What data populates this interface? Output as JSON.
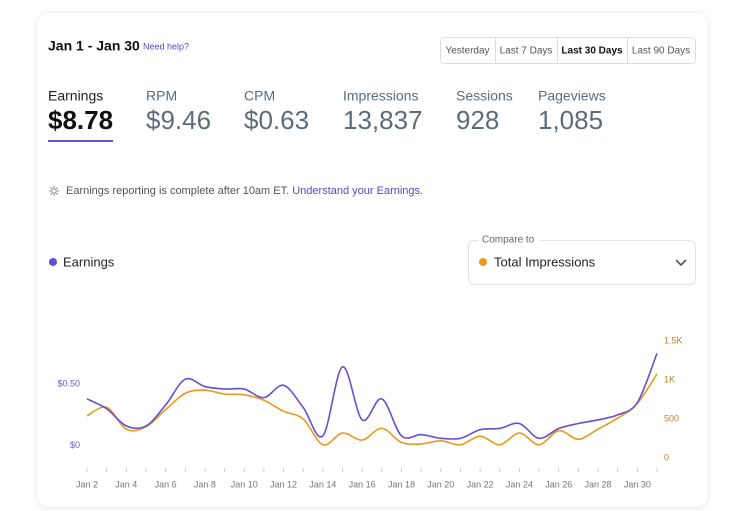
{
  "header": {
    "title": "Jan 1 - Jan 30",
    "help": "Need help?",
    "tabs": [
      "Yesterday",
      "Last 7 Days",
      "Last 30 Days",
      "Last 90 Days"
    ],
    "active_tab": 2
  },
  "metrics": [
    {
      "label": "Earnings",
      "value": "$8.78"
    },
    {
      "label": "RPM",
      "value": "$9.46"
    },
    {
      "label": "CPM",
      "value": "$0.63"
    },
    {
      "label": "Impressions",
      "value": "13,837"
    },
    {
      "label": "Sessions",
      "value": "928"
    },
    {
      "label": "Pageviews",
      "value": "1,085"
    }
  ],
  "active_metric": 0,
  "note": {
    "text": "Earnings reporting is complete after 10am ET.",
    "link": "Understand your Earnings."
  },
  "compare_label": "Compare to",
  "chart_data": {
    "type": "line",
    "categories": [
      "Jan 2",
      null,
      "Jan 4",
      null,
      "Jan 6",
      null,
      "Jan 8",
      null,
      "Jan 10",
      null,
      "Jan 12",
      null,
      "Jan 14",
      null,
      "Jan 16",
      null,
      "Jan 18",
      null,
      "Jan 20",
      null,
      "Jan 22",
      null,
      "Jan 24",
      null,
      "Jan 26",
      null,
      "Jan 28",
      null,
      "Jan 30",
      null
    ],
    "series": [
      {
        "name": "Earnings",
        "color": "#6a4fcc",
        "values": [
          0.38,
          0.3,
          0.16,
          0.16,
          0.33,
          0.54,
          0.48,
          0.46,
          0.46,
          0.39,
          0.49,
          0.31,
          0.08,
          0.64,
          0.21,
          0.38,
          0.08,
          0.09,
          0.06,
          0.06,
          0.13,
          0.14,
          0.18,
          0.06,
          0.14,
          0.18,
          0.21,
          0.25,
          0.35,
          0.75
        ]
      },
      {
        "name": "Total Impressions",
        "color": "#e89b1e",
        "axis": "y2",
        "values": [
          540,
          650,
          370,
          400,
          620,
          830,
          870,
          820,
          810,
          740,
          600,
          500,
          170,
          320,
          230,
          380,
          200,
          180,
          220,
          170,
          280,
          170,
          320,
          170,
          350,
          240,
          370,
          510,
          700,
          1080
        ]
      }
    ],
    "ylim": [
      -0.1,
      0.85
    ],
    "yticks": [
      {
        "value": 0,
        "label": "$0"
      },
      {
        "value": 0.5,
        "label": "$0.50"
      }
    ],
    "y2lim": [
      0,
      1500
    ],
    "y2ticks": [
      0,
      500,
      {
        "value": 1000,
        "label": "1K"
      },
      {
        "value": 1500,
        "label": "1.5K"
      }
    ]
  }
}
